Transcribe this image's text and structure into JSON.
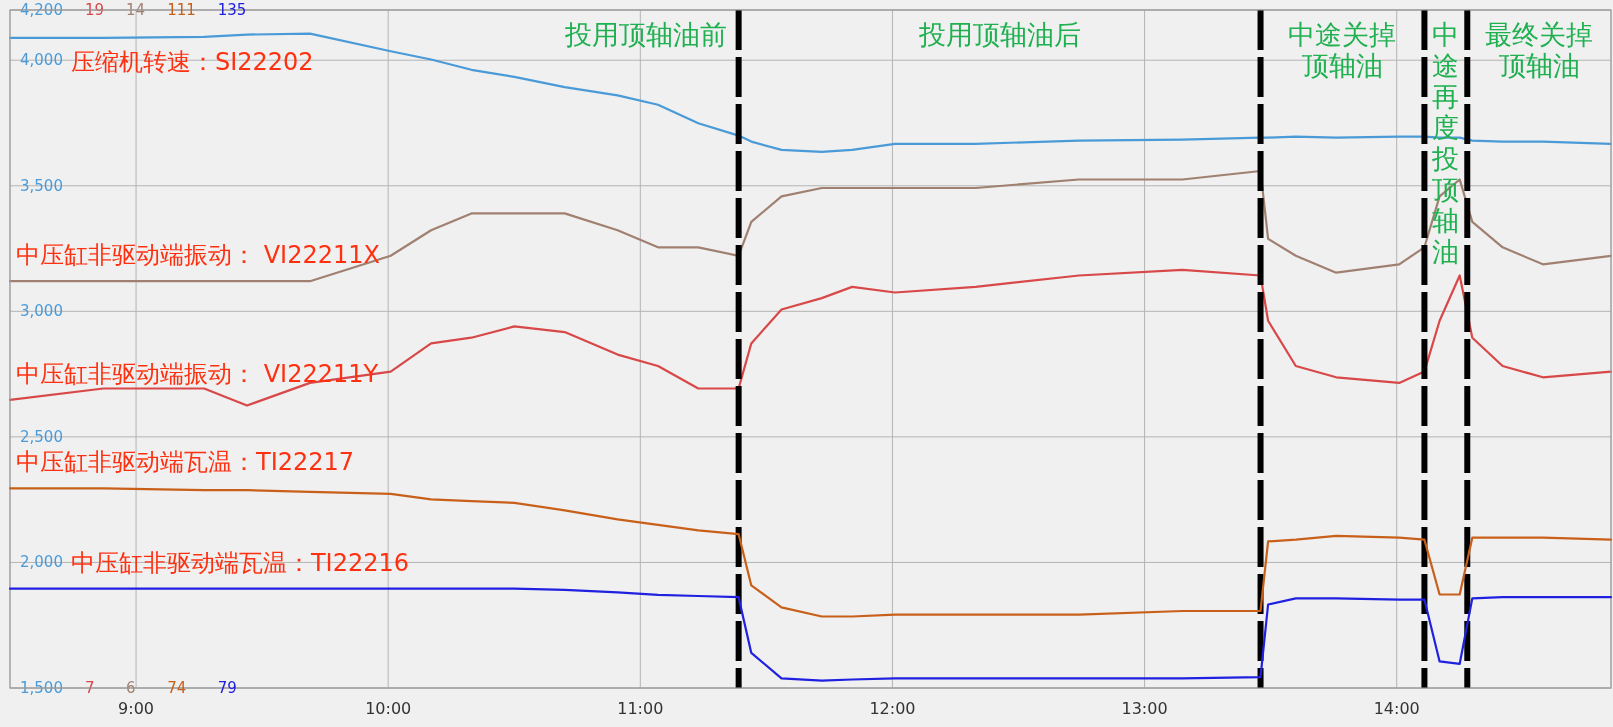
{
  "chart_data": [
    {
      "type": "line",
      "grid": true,
      "x": [
        8.5,
        8.87,
        9.27,
        9.44,
        9.69,
        10.01,
        10.17,
        10.33,
        10.5,
        10.7,
        10.91,
        11.07,
        11.23,
        11.39,
        11.44,
        11.56,
        11.72,
        11.84,
        12.01,
        12.33,
        12.74,
        13.15,
        13.46,
        13.49,
        13.6,
        13.76,
        14.01,
        14.11,
        14.17,
        14.25,
        14.3,
        14.42,
        14.58,
        14.85
      ],
      "xlim": [
        8.5,
        14.85
      ],
      "xticks": [
        {
          "value": 9,
          "label": "9:00"
        },
        {
          "value": 10,
          "label": "10:00"
        },
        {
          "value": 11,
          "label": "11:00"
        },
        {
          "value": 12,
          "label": "12:00"
        },
        {
          "value": 13,
          "label": "13:00"
        },
        {
          "value": 14,
          "label": "14:00"
        }
      ],
      "ylim": [
        1500,
        4200
      ],
      "yticks": [
        {
          "value": 1500,
          "label": "1,500"
        },
        {
          "value": 2000,
          "label": "2,000"
        },
        {
          "value": 2500,
          "label": "2,500"
        },
        {
          "value": 3000,
          "label": "3,000"
        },
        {
          "value": 3500,
          "label": "3,500"
        },
        {
          "value": 4000,
          "label": "4,000"
        },
        {
          "value": 4200,
          "label": "4,200"
        }
      ],
      "y2lim": [
        7,
        19
      ],
      "y2ticks": [
        7,
        19
      ],
      "y3lim": [
        6,
        14
      ],
      "y3ticks": [
        6,
        14
      ],
      "series": [
        {
          "name": "压缩机转速：SI22202",
          "color": "#4a9ad8",
          "axis": "y",
          "values": [
            4089,
            4089,
            4093,
            4102,
            4106,
            4036,
            4003,
            3962,
            3934,
            3893,
            3860,
            3823,
            3749,
            3700,
            3676,
            3643,
            3635,
            3643,
            3667,
            3667,
            3680,
            3684,
            3692,
            3692,
            3696,
            3692,
            3696,
            3696,
            3692,
            3692,
            3680,
            3676,
            3676,
            3667
          ]
        },
        {
          "name": "中压缸非驱动端振动： VI22211Y",
          "color": "#d84848",
          "axis": "y2",
          "values": [
            12.1,
            12.3,
            12.3,
            12.0,
            12.4,
            12.6,
            13.1,
            13.2,
            13.4,
            13.3,
            12.9,
            12.7,
            12.3,
            12.3,
            13.1,
            13.7,
            13.9,
            14.1,
            14.0,
            14.1,
            14.3,
            14.4,
            14.3,
            13.5,
            12.7,
            12.5,
            12.4,
            12.6,
            13.5,
            14.3,
            13.2,
            12.7,
            12.5,
            12.6
          ]
        },
        {
          "name": "中压缸非驱动端振动： VI22211X",
          "color": "#a08070",
          "axis": "y3",
          "values": [
            10.8,
            10.8,
            10.8,
            10.8,
            10.8,
            11.1,
            11.4,
            11.6,
            11.6,
            11.6,
            11.4,
            11.2,
            11.2,
            11.1,
            11.5,
            11.8,
            11.9,
            11.9,
            11.9,
            11.9,
            12.0,
            12.0,
            12.1,
            11.3,
            11.1,
            10.9,
            11.0,
            11.2,
            11.8,
            12.0,
            11.5,
            11.2,
            11.0,
            11.1
          ]
        }
      ],
      "ref_lines": [
        {
          "axis": "x",
          "value": 11.39,
          "color": "#000000",
          "line_style": "dashed"
        },
        {
          "axis": "x",
          "value": 13.46,
          "color": "#000000",
          "line_style": "dashed"
        },
        {
          "axis": "x",
          "value": 14.11,
          "color": "#000000",
          "line_style": "dashed"
        },
        {
          "axis": "x",
          "value": 14.28,
          "color": "#000000",
          "line_style": "dashed"
        }
      ],
      "annotations": [
        "投用顶轴油前",
        "投用顶轴油后",
        "中途关掉顶轴油",
        "中途再度投顶轴油",
        "最终关掉顶轴油"
      ]
    },
    {
      "type": "line",
      "tick_labels": "y",
      "x": [
        8.5,
        8.87,
        9.27,
        9.44,
        9.69,
        10.01,
        10.17,
        10.33,
        10.5,
        10.7,
        10.91,
        11.07,
        11.23,
        11.39,
        11.44,
        11.56,
        11.72,
        11.84,
        12.01,
        12.33,
        12.74,
        13.15,
        13.46,
        13.49,
        13.6,
        13.76,
        14.01,
        14.11,
        14.17,
        14.25,
        14.3,
        14.42,
        14.58,
        14.85
      ],
      "xlim": [
        8.5,
        14.85
      ],
      "ylim": [
        74,
        111
      ],
      "yticks": [
        74,
        111
      ],
      "y2lim": [
        79,
        135
      ],
      "y2ticks": [
        79,
        135
      ],
      "series": [
        {
          "name": "中压缸非驱动端瓦温：TI22217",
          "color": "#c8601a",
          "axis": "y",
          "values": [
            84.9,
            84.9,
            84.8,
            84.8,
            84.7,
            84.6,
            84.3,
            84.2,
            84.1,
            83.7,
            83.2,
            82.9,
            82.6,
            82.4,
            79.6,
            78.4,
            77.9,
            77.9,
            78.0,
            78.0,
            78.0,
            78.2,
            78.2,
            82.0,
            82.1,
            82.3,
            82.2,
            82.1,
            79.1,
            79.1,
            82.2,
            82.2,
            82.2,
            82.1
          ]
        },
        {
          "name": "中压缸非驱动端瓦温：TI22216",
          "color": "#2020e0",
          "axis": "y2",
          "values": [
            87.2,
            87.2,
            87.2,
            87.2,
            87.2,
            87.2,
            87.2,
            87.2,
            87.2,
            87.1,
            86.9,
            86.7,
            86.6,
            86.5,
            81.9,
            79.8,
            79.6,
            79.7,
            79.8,
            79.8,
            79.8,
            79.8,
            79.9,
            85.9,
            86.4,
            86.4,
            86.3,
            86.3,
            81.2,
            81.0,
            86.4,
            86.5,
            86.5,
            86.5
          ]
        }
      ]
    }
  ]
}
